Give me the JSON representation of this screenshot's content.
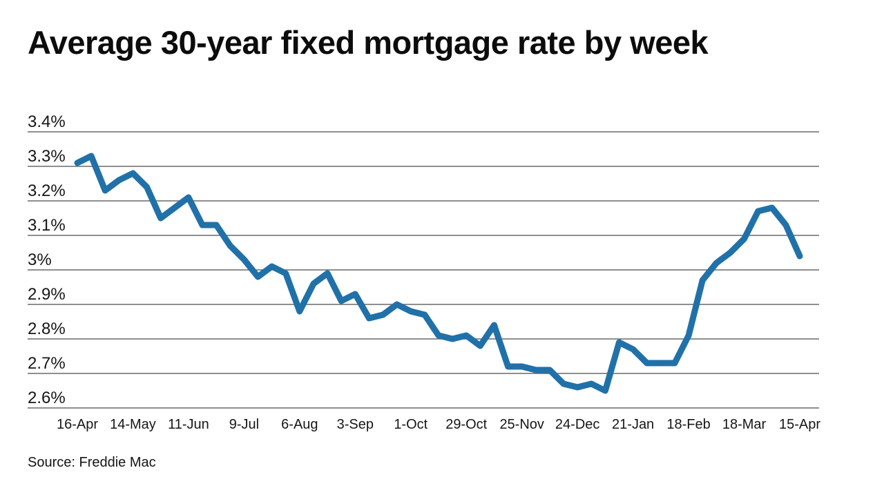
{
  "title": "Average 30-year fixed mortgage rate by week",
  "source": "Source: Freddie Mac",
  "colors": {
    "line": "#2171a9",
    "grid": "#686868",
    "axis_text": "#161616",
    "background": "#ffffff"
  },
  "chart_data": {
    "type": "line",
    "title": "Average 30-year fixed mortgage rate by week",
    "xlabel": "",
    "ylabel": "",
    "unit": "percent",
    "grid": "horizontal-only",
    "legend": "none",
    "ylim": [
      2.6,
      3.4
    ],
    "y_ticks": [
      {
        "label": "3.4%",
        "value": 3.4
      },
      {
        "label": "3.3%",
        "value": 3.3
      },
      {
        "label": "3.2%",
        "value": 3.2
      },
      {
        "label": "3.1%",
        "value": 3.1
      },
      {
        "label": "3%",
        "value": 3.0
      },
      {
        "label": "2.9%",
        "value": 2.9
      },
      {
        "label": "2.8%",
        "value": 2.8
      },
      {
        "label": "2.7%",
        "value": 2.7
      },
      {
        "label": "2.6%",
        "value": 2.6
      }
    ],
    "x_tick_every": 4,
    "x_tick_labels": [
      "16-Apr",
      "14-May",
      "11-Jun",
      "9-Jul",
      "6-Aug",
      "3-Sep",
      "1-Oct",
      "29-Oct",
      "25-Nov",
      "24-Dec",
      "21-Jan",
      "18-Feb",
      "18-Mar",
      "15-Apr"
    ],
    "x": [
      "16-Apr",
      "23-Apr",
      "30-Apr",
      "7-May",
      "14-May",
      "21-May",
      "28-May",
      "4-Jun",
      "11-Jun",
      "18-Jun",
      "25-Jun",
      "2-Jul",
      "9-Jul",
      "16-Jul",
      "23-Jul",
      "30-Jul",
      "6-Aug",
      "13-Aug",
      "20-Aug",
      "27-Aug",
      "3-Sep",
      "10-Sep",
      "17-Sep",
      "24-Sep",
      "1-Oct",
      "8-Oct",
      "15-Oct",
      "22-Oct",
      "29-Oct",
      "5-Nov",
      "12-Nov",
      "19-Nov",
      "25-Nov",
      "3-Dec",
      "10-Dec",
      "17-Dec",
      "24-Dec",
      "31-Dec",
      "7-Jan",
      "14-Jan",
      "21-Jan",
      "28-Jan",
      "4-Feb",
      "11-Feb",
      "18-Feb",
      "25-Feb",
      "4-Mar",
      "11-Mar",
      "18-Mar",
      "25-Mar",
      "1-Apr",
      "8-Apr",
      "15-Apr"
    ],
    "series": [
      {
        "name": "Average 30-year fixed mortgage rate",
        "values": [
          3.31,
          3.33,
          3.23,
          3.26,
          3.28,
          3.24,
          3.15,
          3.18,
          3.21,
          3.13,
          3.13,
          3.07,
          3.03,
          2.98,
          3.01,
          2.99,
          2.88,
          2.96,
          2.99,
          2.91,
          2.93,
          2.86,
          2.87,
          2.9,
          2.88,
          2.87,
          2.81,
          2.8,
          2.81,
          2.78,
          2.84,
          2.72,
          2.72,
          2.71,
          2.71,
          2.67,
          2.66,
          2.67,
          2.65,
          2.79,
          2.77,
          2.73,
          2.73,
          2.73,
          2.81,
          2.97,
          3.02,
          3.05,
          3.09,
          3.17,
          3.18,
          3.13,
          3.04
        ]
      }
    ]
  }
}
